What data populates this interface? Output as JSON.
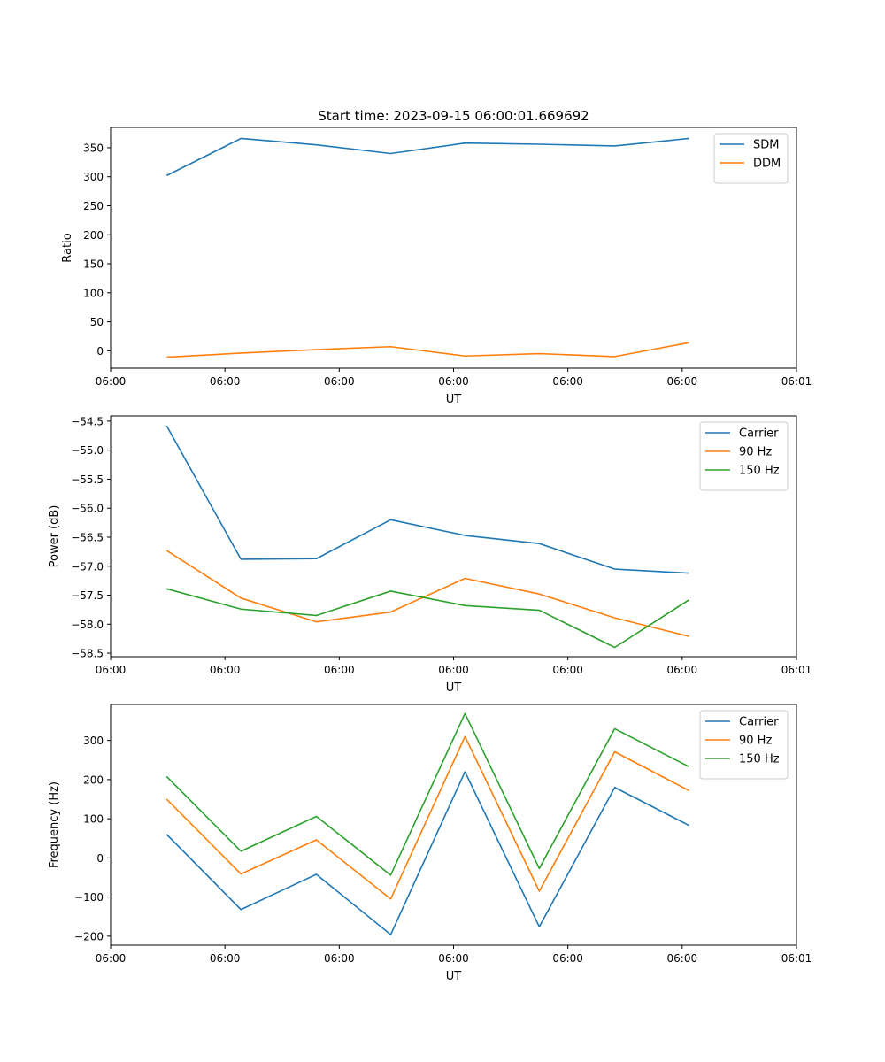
{
  "figure": {
    "title": "Start time: 2023-09-15 06:00:01.669692"
  },
  "chart_data": [
    {
      "type": "line",
      "title": "Start time: 2023-09-15 06:00:01.669692",
      "xlabel": "UT",
      "ylabel": "Ratio",
      "xlim": [
        0,
        6
      ],
      "ylim": [
        -30,
        385
      ],
      "xticks": [
        0,
        1,
        2,
        3,
        4,
        5,
        6
      ],
      "xtick_labels": [
        "06:00",
        "06:00",
        "06:00",
        "06:00",
        "06:00",
        "06:00",
        "06:01"
      ],
      "yticks": [
        0,
        50,
        100,
        150,
        200,
        250,
        300,
        350
      ],
      "ytick_labels": [
        "0",
        "50",
        "100",
        "150",
        "200",
        "250",
        "300",
        "350"
      ],
      "legend_position": "top-right",
      "x": [
        0.49,
        1.14,
        1.8,
        2.45,
        3.1,
        3.75,
        4.41,
        5.06
      ],
      "series": [
        {
          "name": "SDM",
          "color": "#1f77b4",
          "values": [
            302,
            366,
            355,
            340,
            358,
            356,
            353,
            366
          ]
        },
        {
          "name": "DDM",
          "color": "#ff7f0e",
          "values": [
            -11,
            -4,
            2,
            7,
            -9,
            -5,
            -10,
            14
          ]
        }
      ]
    },
    {
      "type": "line",
      "title": "",
      "xlabel": "UT",
      "ylabel": "Power (dB)",
      "xlim": [
        0,
        6
      ],
      "ylim": [
        -58.56,
        -54.41
      ],
      "xticks": [
        0,
        1,
        2,
        3,
        4,
        5,
        6
      ],
      "xtick_labels": [
        "06:00",
        "06:00",
        "06:00",
        "06:00",
        "06:00",
        "06:00",
        "06:01"
      ],
      "yticks": [
        -58.5,
        -58.0,
        -57.5,
        -57.0,
        -56.5,
        -56.0,
        -55.5,
        -55.0,
        -54.5
      ],
      "ytick_labels": [
        "−58.5",
        "−58.0",
        "−57.5",
        "−57.0",
        "−56.5",
        "−56.0",
        "−55.5",
        "−55.0",
        "−54.5"
      ],
      "legend_position": "top-right",
      "x": [
        0.49,
        1.14,
        1.8,
        2.45,
        3.1,
        3.75,
        4.41,
        5.06
      ],
      "series": [
        {
          "name": "Carrier",
          "color": "#1f77b4",
          "values": [
            -54.58,
            -56.88,
            -56.87,
            -56.2,
            -56.47,
            -56.61,
            -57.05,
            -57.12
          ]
        },
        {
          "name": "90 Hz",
          "color": "#ff7f0e",
          "values": [
            -56.73,
            -57.55,
            -57.96,
            -57.79,
            -57.21,
            -57.48,
            -57.89,
            -58.21
          ]
        },
        {
          "name": "150 Hz",
          "color": "#2ca02c",
          "values": [
            -57.39,
            -57.74,
            -57.85,
            -57.43,
            -57.68,
            -57.76,
            -58.4,
            -57.58
          ]
        }
      ]
    },
    {
      "type": "line",
      "title": "",
      "xlabel": "UT",
      "ylabel": "Frequency (Hz)",
      "xlim": [
        0,
        6
      ],
      "ylim": [
        -223,
        392
      ],
      "xticks": [
        0,
        1,
        2,
        3,
        4,
        5,
        6
      ],
      "xtick_labels": [
        "06:00",
        "06:00",
        "06:00",
        "06:00",
        "06:00",
        "06:00",
        "06:01"
      ],
      "yticks": [
        -200,
        -100,
        0,
        100,
        200,
        300
      ],
      "ytick_labels": [
        "−200",
        "−100",
        "0",
        "100",
        "200",
        "300"
      ],
      "legend_position": "top-right",
      "x": [
        0.49,
        1.14,
        1.8,
        2.45,
        3.1,
        3.75,
        4.41,
        5.06
      ],
      "series": [
        {
          "name": "Carrier",
          "color": "#1f77b4",
          "values": [
            60,
            -132,
            -42,
            -196,
            220,
            -176,
            180,
            83
          ]
        },
        {
          "name": "90 Hz",
          "color": "#ff7f0e",
          "values": [
            150,
            -41,
            46,
            -105,
            310,
            -85,
            271,
            172
          ]
        },
        {
          "name": "150 Hz",
          "color": "#2ca02c",
          "values": [
            208,
            17,
            106,
            -44,
            369,
            -27,
            330,
            233
          ]
        }
      ]
    }
  ]
}
